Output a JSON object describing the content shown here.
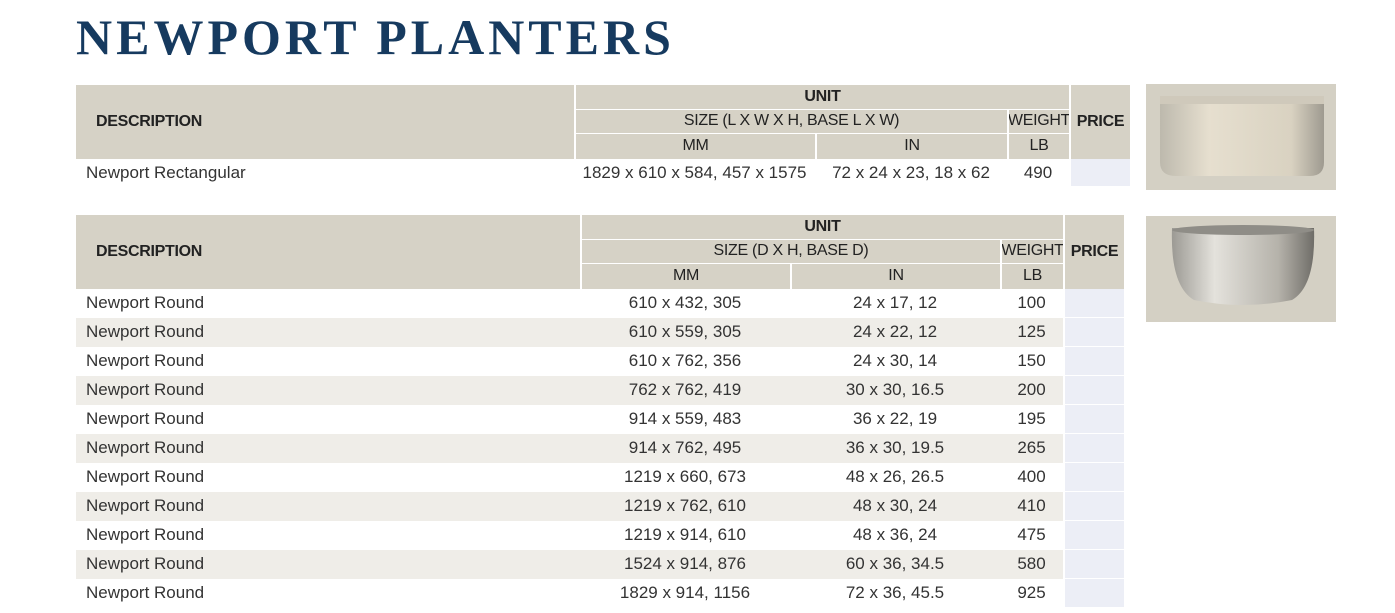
{
  "title": "NEWPORT PLANTERS",
  "tables": [
    {
      "header": {
        "description": "DESCRIPTION",
        "unit": "UNIT",
        "size": "SIZE (L X W X H, BASE L X W)",
        "weight": "WEIGHT",
        "price": "PRICE",
        "mm": "MM",
        "in": "IN",
        "lb": "LB"
      },
      "rows": [
        [
          "Newport Rectangular",
          "1829 x 610 x 584, 457 x 1575",
          "72 x 24 x 23, 18 x 62",
          "490"
        ]
      ]
    },
    {
      "header": {
        "description": "DESCRIPTION",
        "unit": "UNIT",
        "size": "SIZE (D X H, BASE D)",
        "weight": "WEIGHT",
        "price": "PRICE",
        "mm": "MM",
        "in": "IN",
        "lb": "LB"
      },
      "rows": [
        [
          "Newport Round",
          "610 x 432, 305",
          "24 x 17, 12",
          "100"
        ],
        [
          "Newport Round",
          "610 x 559, 305",
          "24 x 22, 12",
          "125"
        ],
        [
          "Newport Round",
          "610 x 762, 356",
          "24 x 30, 14",
          "150"
        ],
        [
          "Newport Round",
          "762 x 762, 419",
          "30 x 30, 16.5",
          "200"
        ],
        [
          "Newport Round",
          "914 x 559, 483",
          "36 x 22, 19",
          "195"
        ],
        [
          "Newport Round",
          "914 x 762, 495",
          "36 x 30, 19.5",
          "265"
        ],
        [
          "Newport Round",
          "1219 x 660, 673",
          "48 x 26, 26.5",
          "400"
        ],
        [
          "Newport Round",
          "1219 x 762, 610",
          "48 x 30, 24",
          "410"
        ],
        [
          "Newport Round",
          "1219 x 914, 610",
          "48 x 36, 24",
          "475"
        ],
        [
          "Newport Round",
          "1524 x 914, 876",
          "60 x 36, 34.5",
          "580"
        ],
        [
          "Newport Round",
          "1829 x 914, 1156",
          "72 x 36, 45.5",
          "925"
        ]
      ]
    }
  ]
}
